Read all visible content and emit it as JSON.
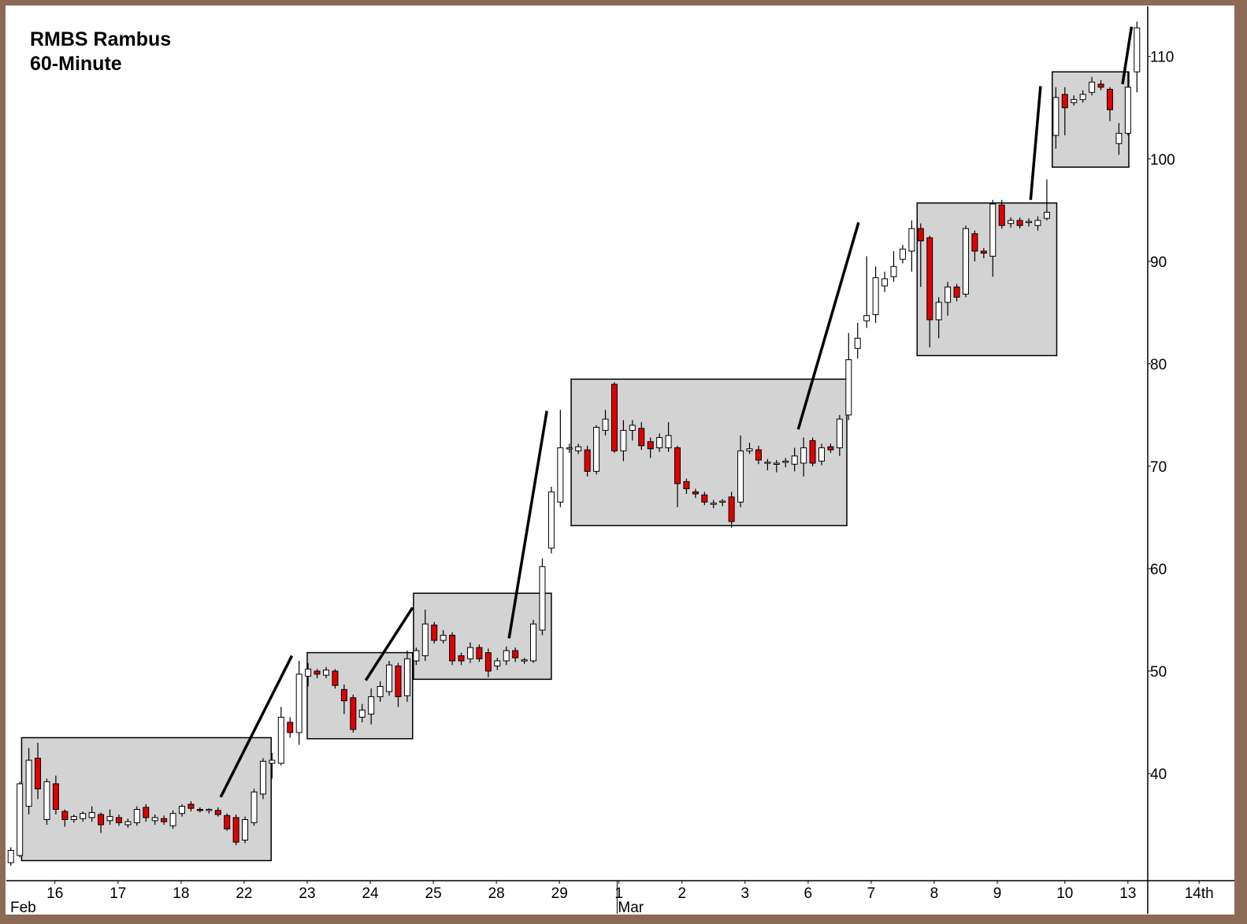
{
  "chart_data": {
    "type": "candlestick",
    "title": "RMBS Rambus",
    "subtitle": "60-Minute",
    "up_color": "#ffffff",
    "down_color": "#e00000",
    "zone_color": "#d3d3d3",
    "open": [
      31.3,
      32,
      36.8,
      41.5,
      35.5,
      39,
      36.3,
      35.5,
      35.6,
      35.7,
      36,
      35.4,
      35.7,
      35,
      35.2,
      36.7,
      35.4,
      35.6,
      34.9,
      36.1,
      37,
      36.5,
      36.4,
      36.4,
      35.9,
      35.7,
      33.5,
      35.2,
      38,
      41,
      41,
      45,
      44,
      49.5,
      50,
      49.6,
      50,
      48.2,
      47.4,
      45.5,
      45.8,
      47.5,
      48,
      50.5,
      47.6,
      51,
      51.5,
      54.5,
      53,
      53.5,
      51.5,
      51.2,
      52.3,
      51.8,
      50.5,
      51,
      52,
      51,
      51,
      54,
      62,
      66.5,
      71.7,
      71.5,
      71.6,
      69.5,
      73.5,
      78,
      71.5,
      73.5,
      73.7,
      72.4,
      71.8,
      71.8,
      71.8,
      68.5,
      67.5,
      67.2,
      66.3,
      66.5,
      67,
      66.5,
      71.5,
      71.6,
      70.3,
      70.2,
      70.4,
      70.2,
      70.3,
      72.5,
      70.5,
      71.9,
      71.8,
      75,
      81.5,
      84.2,
      84.8,
      87.6,
      88.5,
      90.2,
      91,
      93.2,
      92.3,
      84.3,
      86,
      87.5,
      86.8,
      92.7,
      91,
      90.5,
      95.5,
      93.7,
      94,
      93.8,
      93.5,
      94.2,
      102.3,
      106.3,
      105.5,
      105.8,
      106.5,
      107.3,
      106.8,
      101.5,
      102.5,
      108.5
    ],
    "high": [
      32.8,
      39.2,
      42.5,
      43,
      39.5,
      39.8,
      36.5,
      36,
      36.3,
      36.8,
      36.2,
      36.5,
      36,
      35.6,
      36.8,
      37,
      36,
      35.9,
      36.4,
      37,
      37.3,
      36.7,
      36.6,
      36.7,
      36.1,
      36,
      35.8,
      38.5,
      41.5,
      42,
      46.5,
      45.5,
      51,
      50.8,
      50.2,
      50.4,
      50.2,
      48.7,
      47.7,
      46.8,
      48.3,
      49,
      51,
      50.8,
      52,
      52.3,
      56,
      54.8,
      54,
      53.8,
      51.8,
      52.8,
      52.6,
      52.2,
      51.3,
      52.4,
      52.3,
      51.3,
      55,
      61,
      68,
      75.5,
      72.2,
      72.2,
      72,
      74,
      75.5,
      78.2,
      74.5,
      74.5,
      74.3,
      72.8,
      73.2,
      74.3,
      72,
      68.8,
      67.8,
      67.5,
      66.7,
      66.8,
      67.5,
      73,
      72.3,
      72,
      70.7,
      70.6,
      70.8,
      71.8,
      72.8,
      72.8,
      72.2,
      72.2,
      75,
      83,
      84,
      90.5,
      89.5,
      89,
      91,
      91.6,
      94,
      93.7,
      92.5,
      86.5,
      88,
      87.8,
      93.5,
      93,
      91.3,
      96,
      96,
      94.3,
      94.3,
      94.2,
      94.4,
      98,
      107,
      107,
      106.2,
      106.7,
      108,
      107.7,
      107,
      103.5,
      108.5,
      113.4
    ],
    "low": [
      31,
      31.8,
      36,
      37.5,
      35,
      36,
      34.8,
      35.2,
      35.3,
      35.3,
      34.2,
      35,
      34.9,
      34.7,
      34.9,
      35.3,
      35,
      35,
      34.6,
      35.8,
      36.3,
      36.2,
      36.1,
      35.8,
      34.4,
      33,
      33.2,
      34.9,
      37.5,
      39.5,
      40.8,
      43.5,
      42.8,
      48.5,
      49.3,
      49.3,
      48.3,
      45.8,
      44,
      45,
      44.8,
      47,
      47.6,
      46.5,
      47,
      50.6,
      51,
      52.7,
      52.7,
      50.6,
      50.6,
      50.8,
      50.9,
      49.4,
      50.1,
      50.6,
      50.9,
      50.7,
      50.8,
      53.5,
      61.5,
      66,
      71.3,
      71.2,
      69,
      69.2,
      73,
      71.3,
      70.5,
      72.5,
      71.6,
      70.8,
      71.4,
      71.4,
      66,
      67.3,
      66.9,
      66.2,
      65.9,
      66.1,
      64,
      66,
      71.2,
      70.2,
      69.6,
      69.4,
      69.9,
      69.5,
      69,
      70,
      70.1,
      71.3,
      71,
      74.5,
      80.5,
      83.5,
      84,
      87,
      88,
      89.8,
      89,
      87.5,
      81.6,
      82.5,
      84.7,
      86.1,
      86.5,
      90,
      90.3,
      88.5,
      93.2,
      93.3,
      93.2,
      93.4,
      93,
      94,
      101,
      102.3,
      105.2,
      105.5,
      106.2,
      106.7,
      103.7,
      100.4,
      102.3,
      106.5
    ],
    "close": [
      32.5,
      39,
      41.3,
      38.5,
      39.2,
      36.5,
      35.5,
      35.8,
      36.1,
      36.2,
      35,
      35.8,
      35.2,
      35.3,
      36.5,
      35.7,
      35.7,
      35.3,
      36.1,
      36.8,
      36.6,
      36.4,
      36.5,
      36,
      34.6,
      33.3,
      35.5,
      38.2,
      41.2,
      41.3,
      45.5,
      44,
      49.7,
      50.2,
      49.7,
      50.1,
      48.6,
      47.1,
      44.3,
      46.2,
      47.5,
      48.5,
      50.6,
      47.5,
      51.2,
      52,
      54.6,
      53,
      53.5,
      51,
      51,
      52.3,
      51.2,
      50,
      51,
      52,
      51.3,
      51.1,
      54.6,
      60.2,
      67.5,
      71.8,
      71.8,
      71.9,
      69.5,
      73.8,
      74.6,
      71.5,
      73.5,
      74,
      72,
      71.7,
      72.8,
      73,
      68.3,
      67.8,
      67.3,
      66.5,
      66.4,
      66.6,
      64.6,
      71.5,
      71.7,
      70.6,
      70.4,
      70.3,
      70.5,
      71,
      71.8,
      70.3,
      71.8,
      71.6,
      74.6,
      80.4,
      82.5,
      84.7,
      88.4,
      88.3,
      89.5,
      91.2,
      93.2,
      92,
      84.3,
      86,
      87.5,
      86.5,
      93.2,
      91,
      90.8,
      95.6,
      93.5,
      94,
      93.5,
      93.9,
      94,
      94.8,
      106,
      105,
      105.8,
      106.3,
      107.5,
      107,
      104.8,
      102.5,
      107,
      112.8
    ],
    "xlim": [
      -0.5,
      126.2
    ],
    "ylim": [
      29.54,
      114.9
    ],
    "yticks": [
      40,
      50,
      60,
      70,
      80,
      90,
      100,
      110
    ],
    "xticks": [
      {
        "value": 4.9,
        "label": "16"
      },
      {
        "value": 11.9,
        "label": "17"
      },
      {
        "value": 18.9,
        "label": "18"
      },
      {
        "value": 25.9,
        "label": "22"
      },
      {
        "value": 32.9,
        "label": "23"
      },
      {
        "value": 39.9,
        "label": "24"
      },
      {
        "value": 46.9,
        "label": "25"
      },
      {
        "value": 53.9,
        "label": "28"
      },
      {
        "value": 60.9,
        "label": "29"
      },
      {
        "value": 67.5,
        "label": "1"
      },
      {
        "value": 74.5,
        "label": "2"
      },
      {
        "value": 81.5,
        "label": "3"
      },
      {
        "value": 88.5,
        "label": "6"
      },
      {
        "value": 95.5,
        "label": "7"
      },
      {
        "value": 102.5,
        "label": "8"
      },
      {
        "value": 109.5,
        "label": "9"
      },
      {
        "value": 117,
        "label": "10"
      },
      {
        "value": 124,
        "label": "13"
      },
      {
        "value": 131.9,
        "label": "14th"
      }
    ],
    "month_labels": [
      {
        "value": -0.5,
        "label": "Feb"
      },
      {
        "value": 67.3,
        "label": "Mar"
      }
    ],
    "zones": [
      {
        "x": [
          1.2,
          28.9
        ],
        "y": [
          31.5,
          43.5
        ]
      },
      {
        "x": [
          32.9,
          44.6
        ],
        "y": [
          43.4,
          51.8
        ]
      },
      {
        "x": [
          44.7,
          60.0
        ],
        "y": [
          49.2,
          57.6
        ]
      },
      {
        "x": [
          62.2,
          92.8
        ],
        "y": [
          64.2,
          78.5
        ]
      },
      {
        "x": [
          100.6,
          116.1
        ],
        "y": [
          80.8,
          95.7
        ]
      },
      {
        "x": [
          115.6,
          124.1
        ],
        "y": [
          99.2,
          108.5
        ]
      }
    ],
    "trend_lines": [
      {
        "x": [
          23.3,
          31.2
        ],
        "y": [
          37.7,
          51.5
        ]
      },
      {
        "x": [
          39.4,
          44.6
        ],
        "y": [
          49.1,
          56.2
        ]
      },
      {
        "x": [
          55.3,
          59.5
        ],
        "y": [
          53.2,
          75.4
        ]
      },
      {
        "x": [
          87.4,
          94.1
        ],
        "y": [
          73.6,
          93.8
        ]
      },
      {
        "x": [
          113.2,
          114.3
        ],
        "y": [
          96.0,
          107.1
        ]
      },
      {
        "x": [
          123.4,
          124.4
        ],
        "y": [
          107.3,
          112.9
        ]
      }
    ]
  }
}
